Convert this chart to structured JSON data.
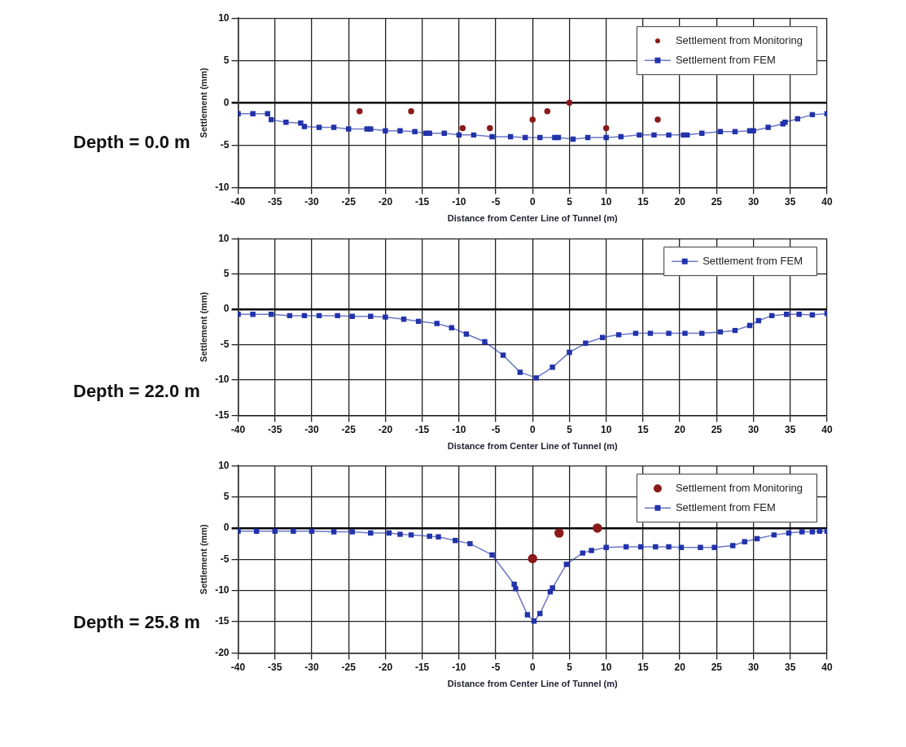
{
  "chart_data": [
    {
      "type": "line",
      "xlabel": "Distance from Center Line of Tunnel (m)",
      "ylabel": "Settlement (mm)",
      "annotations": [
        "Depth = 0.0 m"
      ],
      "xlim": [
        -40,
        40
      ],
      "xticks": [
        -40,
        -35,
        -30,
        -25,
        -20,
        -15,
        -10,
        -5,
        0,
        5,
        10,
        15,
        20,
        25,
        30,
        35,
        40
      ],
      "ylim": [
        -10,
        10
      ],
      "yticks": [
        -10,
        -5,
        0,
        5,
        10
      ],
      "grid": true,
      "legend": "top right",
      "series": [
        {
          "name": "Settlement from Monitoring",
          "type": "scatter",
          "marker": "circle",
          "color": "#8b1a1a",
          "x": [
            -23.5,
            -16.5,
            -9.5,
            -5.8,
            0,
            2,
            5,
            10,
            17
          ],
          "values": [
            -1,
            -1,
            -3,
            -3,
            -2,
            -1,
            0,
            -3,
            -2
          ]
        },
        {
          "name": "Settlement from FEM",
          "type": "line",
          "marker": "square",
          "color": "#2233aa",
          "x": [
            -40,
            -38,
            -36,
            -35.5,
            -33.5,
            -31.5,
            -31,
            -29,
            -27,
            -25,
            -22.5,
            -22,
            -20,
            -18,
            -16,
            -14.5,
            -14,
            -12,
            -10,
            -8,
            -5.5,
            -3,
            -1,
            1,
            3,
            3.5,
            5.5,
            7.5,
            10,
            12,
            14.5,
            16.5,
            18.5,
            20.5,
            21,
            23,
            25.5,
            27.5,
            29.5,
            30,
            32,
            34,
            34.3,
            36,
            38,
            40
          ],
          "values": [
            -1.3,
            -1.3,
            -1.3,
            -2.0,
            -2.3,
            -2.4,
            -2.8,
            -2.9,
            -2.9,
            -3.1,
            -3.1,
            -3.1,
            -3.3,
            -3.3,
            -3.4,
            -3.6,
            -3.6,
            -3.6,
            -3.8,
            -3.8,
            -4.0,
            -4.0,
            -4.1,
            -4.1,
            -4.1,
            -4.1,
            -4.3,
            -4.1,
            -4.1,
            -4.0,
            -3.8,
            -3.8,
            -3.8,
            -3.8,
            -3.8,
            -3.6,
            -3.4,
            -3.4,
            -3.3,
            -3.3,
            -2.9,
            -2.5,
            -2.3,
            -1.9,
            -1.4,
            -1.3
          ]
        }
      ]
    },
    {
      "type": "line",
      "xlabel": "Distance from Center Line of Tunnel (m)",
      "ylabel": "Settlement (mm)",
      "annotations": [
        "Depth = 22.0 m"
      ],
      "xlim": [
        -40,
        40
      ],
      "xticks": [
        -40,
        -35,
        -30,
        -25,
        -20,
        -15,
        -10,
        -5,
        0,
        5,
        10,
        15,
        20,
        25,
        30,
        35,
        40
      ],
      "ylim": [
        -15,
        10
      ],
      "yticks": [
        -15,
        -10,
        -5,
        0,
        5,
        10
      ],
      "grid": true,
      "legend": "top right",
      "series": [
        {
          "name": "Settlement from FEM",
          "type": "line",
          "marker": "square",
          "color": "#2233aa",
          "x": [
            -40,
            -38,
            -35.5,
            -33,
            -31,
            -29,
            -26.5,
            -24.5,
            -22,
            -20,
            -17.5,
            -15.5,
            -13,
            -11,
            -9,
            -6.5,
            -4,
            -1.7,
            0.5,
            2.7,
            5,
            7.2,
            9.5,
            11.7,
            14,
            16,
            18.5,
            20.7,
            23,
            25.5,
            27.5,
            29.5,
            30.7,
            32.5,
            34.5,
            36.2,
            38,
            40
          ],
          "values": [
            -0.7,
            -0.7,
            -0.7,
            -0.9,
            -0.9,
            -0.9,
            -0.9,
            -1.0,
            -1.0,
            -1.1,
            -1.4,
            -1.7,
            -2.0,
            -2.6,
            -3.5,
            -4.6,
            -6.5,
            -8.9,
            -9.7,
            -8.2,
            -6.1,
            -4.8,
            -4.0,
            -3.6,
            -3.4,
            -3.4,
            -3.4,
            -3.4,
            -3.4,
            -3.2,
            -3.0,
            -2.3,
            -1.6,
            -0.9,
            -0.7,
            -0.7,
            -0.8,
            -0.6
          ]
        }
      ]
    },
    {
      "type": "line",
      "xlabel": "Distance from Center Line of Tunnel (m)",
      "ylabel": "Settlement (mm)",
      "annotations": [
        "Depth = 25.8 m"
      ],
      "xlim": [
        -40,
        40
      ],
      "xticks": [
        -40,
        -35,
        -30,
        -25,
        -20,
        -15,
        -10,
        -5,
        0,
        5,
        10,
        15,
        20,
        25,
        30,
        35,
        40
      ],
      "ylim": [
        -20,
        10
      ],
      "yticks": [
        -20,
        -15,
        -10,
        -5,
        0,
        5,
        10
      ],
      "grid": true,
      "legend": "top right",
      "series": [
        {
          "name": "Settlement from Monitoring",
          "type": "scatter",
          "marker": "circle",
          "color": "#8b1a1a",
          "x": [
            0,
            3.6,
            8.8
          ],
          "values": [
            -4.9,
            -0.8,
            0
          ]
        },
        {
          "name": "Settlement from FEM",
          "type": "line",
          "marker": "square",
          "color": "#2233aa",
          "x": [
            -40,
            -37.5,
            -35,
            -32.5,
            -30,
            -27,
            -24.5,
            -22,
            -19.5,
            -18,
            -16.5,
            -14,
            -12.8,
            -10.5,
            -8.5,
            -5.5,
            -2.5,
            -2.3,
            -0.7,
            0.2,
            1,
            2.4,
            2.7,
            4.6,
            6.8,
            8,
            10,
            12.7,
            14.7,
            16.7,
            18.5,
            20.2,
            22.8,
            24.7,
            27.2,
            28.8,
            30.5,
            32.8,
            34.8,
            36.6,
            38,
            39,
            40
          ],
          "values": [
            -0.5,
            -0.5,
            -0.5,
            -0.5,
            -0.5,
            -0.6,
            -0.6,
            -0.8,
            -0.8,
            -1.0,
            -1.1,
            -1.3,
            -1.4,
            -2.0,
            -2.5,
            -4.3,
            -9.0,
            -9.7,
            -13.9,
            -14.9,
            -13.7,
            -10.2,
            -9.6,
            -5.8,
            -4.0,
            -3.6,
            -3.1,
            -3.0,
            -3.0,
            -3.0,
            -3.0,
            -3.1,
            -3.1,
            -3.1,
            -2.8,
            -2.2,
            -1.7,
            -1.1,
            -0.8,
            -0.6,
            -0.6,
            -0.5,
            -0.5
          ]
        }
      ]
    }
  ]
}
